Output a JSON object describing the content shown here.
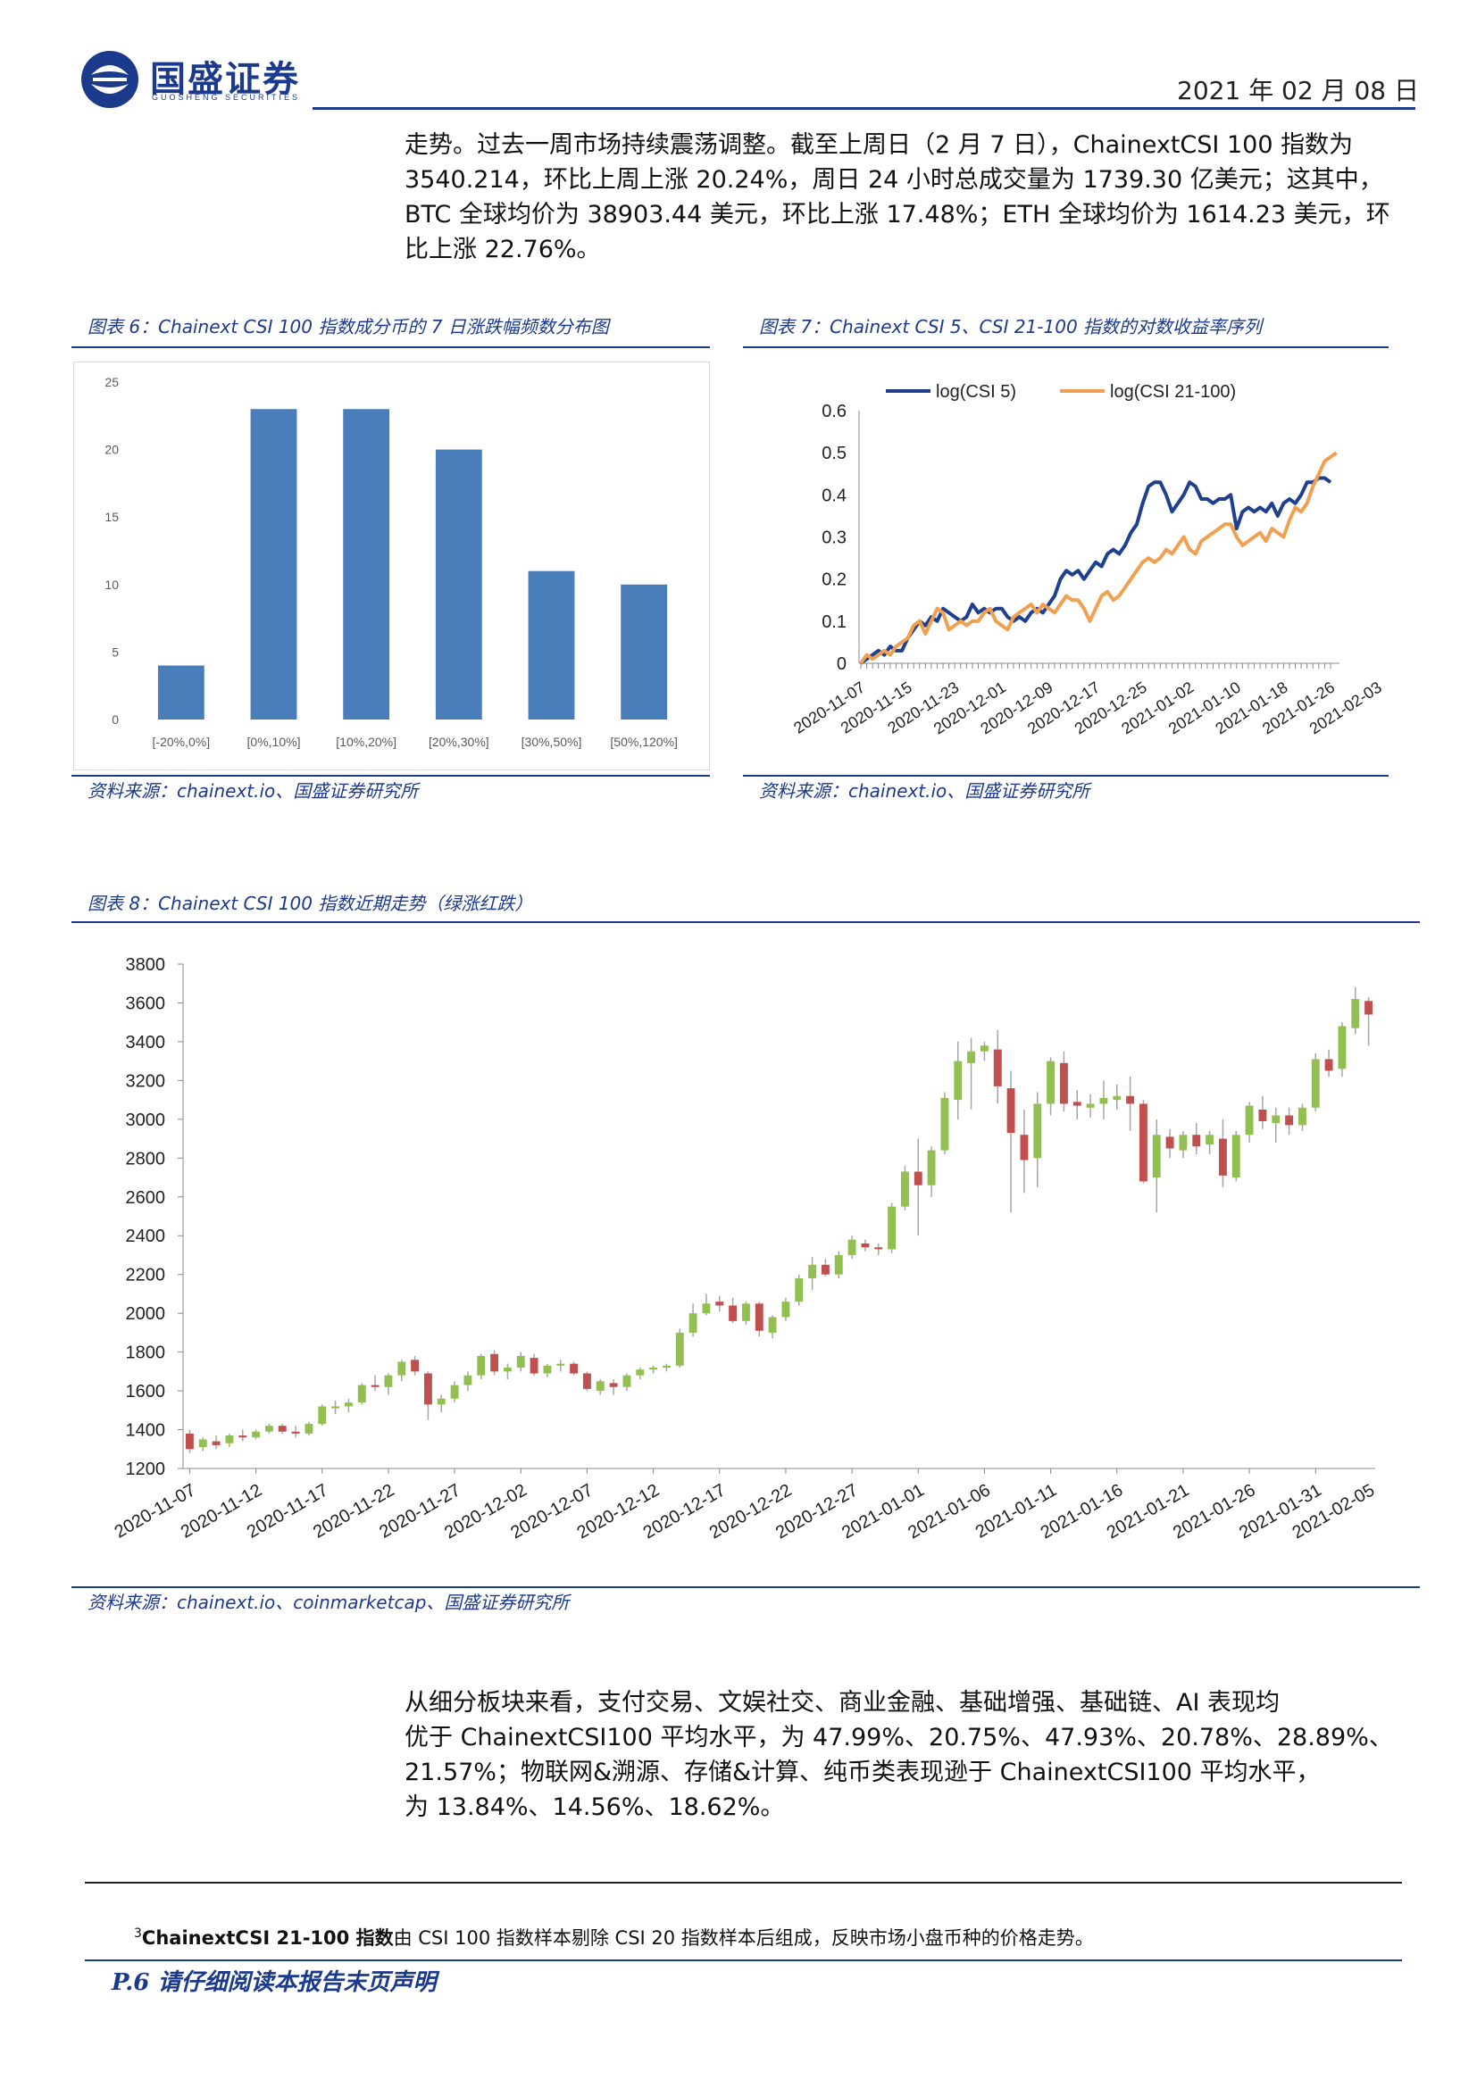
{
  "header": {
    "logo_text": "国盛证券",
    "logo_sub": "GUOSHENG SECURITIES",
    "date": "2021 年 02 月 08 日"
  },
  "intro_lines": [
    "走势。过去一周市场持续震荡调整。截至上周日（2 月 7 日），ChainextCSI 100 指数为",
    "3540.214，环比上周上涨 20.24%，周日 24 小时总成交量为 1739.30 亿美元；这其中，",
    "BTC 全球均价为 38903.44 美元，环比上涨 17.48%；ETH 全球均价为 1614.23 美元，环",
    "比上涨 22.76%。"
  ],
  "fig6": {
    "title": "图表 6：Chainext CSI 100 指数成分币的 7 日涨跌幅频数分布图",
    "source": "资料来源：chainext.io、国盛证券研究所"
  },
  "fig7": {
    "title": "图表 7：Chainext CSI 5、CSI 21-100 指数的对数收益率序列",
    "source": "资料来源：chainext.io、国盛证券研究所"
  },
  "fig8": {
    "title": "图表 8：Chainext CSI 100 指数近期走势（绿涨红跌）",
    "source": "资料来源：chainext.io、coinmarketcap、国盛证券研究所"
  },
  "body_lines": [
    "从细分板块来看，支付交易、文娱社交、商业金融、基础增强、基础链、AI 表现均",
    "优于 ChainextCSI100 平均水平，为 47.99%、20.75%、47.93%、20.78%、28.89%、",
    "21.57%；物联网&溯源、存储&计算、纯币类表现逊于 ChainextCSI100 平均水平，",
    "为 13.84%、14.56%、18.62%。"
  ],
  "footnote": {
    "mark": "3",
    "term": "ChainextCSI 21-100 指数",
    "text": "由 CSI 100 指数样本剔除 CSI 20 指数样本后组成，反映市场小盘币种的价格走势。"
  },
  "footer": {
    "text": "P.6 请仔细阅读本报告末页声明"
  },
  "colors": {
    "brand": "#1b3a8c",
    "bar": "#4a7ebb",
    "line1": "#1f3f8f",
    "line2": "#f0a050",
    "up": "#92c050",
    "down": "#c0504d"
  },
  "chart_data": [
    {
      "id": "fig6",
      "type": "bar",
      "categories": [
        "[-20%,0%]",
        "[0%,10%]",
        "[10%,20%]",
        "[20%,30%]",
        "[30%,50%]",
        "[50%,120%]"
      ],
      "values": [
        4,
        23,
        23,
        20,
        11,
        10
      ],
      "ylim": [
        0,
        25
      ],
      "yticks": [
        0,
        5,
        10,
        15,
        20,
        25
      ],
      "grid": false
    },
    {
      "id": "fig7",
      "type": "line",
      "x_tick_labels": [
        "2020-11-07",
        "2020-11-15",
        "2020-11-23",
        "2020-12-01",
        "2020-12-09",
        "2020-12-17",
        "2020-12-25",
        "2021-01-02",
        "2021-01-10",
        "2021-01-18",
        "2021-01-26",
        "2021-02-03"
      ],
      "ylim": [
        0,
        0.6
      ],
      "yticks": [
        "0",
        "0.1",
        "0.2",
        "0.3",
        "0.4",
        "0.5",
        "0.6"
      ],
      "legend": "top",
      "series": [
        {
          "name": "log(CSI 5)",
          "color": "#1f3f8f",
          "values": [
            0.0,
            0.01,
            0.02,
            0.03,
            0.02,
            0.04,
            0.03,
            0.03,
            0.06,
            0.08,
            0.1,
            0.09,
            0.11,
            0.1,
            0.13,
            0.12,
            0.11,
            0.1,
            0.11,
            0.14,
            0.12,
            0.13,
            0.12,
            0.13,
            0.13,
            0.11,
            0.1,
            0.11,
            0.1,
            0.12,
            0.13,
            0.12,
            0.14,
            0.16,
            0.2,
            0.22,
            0.21,
            0.22,
            0.2,
            0.22,
            0.24,
            0.23,
            0.26,
            0.27,
            0.26,
            0.28,
            0.31,
            0.33,
            0.38,
            0.42,
            0.43,
            0.43,
            0.4,
            0.36,
            0.38,
            0.4,
            0.43,
            0.42,
            0.39,
            0.39,
            0.38,
            0.39,
            0.39,
            0.4,
            0.32,
            0.36,
            0.37,
            0.36,
            0.37,
            0.36,
            0.38,
            0.35,
            0.38,
            0.39,
            0.38,
            0.4,
            0.43,
            0.43,
            0.44,
            0.44,
            0.43
          ]
        },
        {
          "name": "log(CSI 21-100)",
          "color": "#f0a050",
          "values": [
            0.0,
            0.02,
            0.01,
            0.02,
            0.03,
            0.02,
            0.04,
            0.05,
            0.06,
            0.09,
            0.1,
            0.07,
            0.1,
            0.13,
            0.12,
            0.08,
            0.09,
            0.1,
            0.09,
            0.1,
            0.1,
            0.12,
            0.13,
            0.1,
            0.09,
            0.08,
            0.11,
            0.12,
            0.13,
            0.14,
            0.12,
            0.14,
            0.13,
            0.12,
            0.14,
            0.16,
            0.15,
            0.15,
            0.13,
            0.1,
            0.13,
            0.16,
            0.17,
            0.15,
            0.16,
            0.18,
            0.2,
            0.22,
            0.24,
            0.25,
            0.24,
            0.25,
            0.27,
            0.26,
            0.28,
            0.3,
            0.27,
            0.26,
            0.29,
            0.3,
            0.31,
            0.32,
            0.33,
            0.33,
            0.3,
            0.28,
            0.29,
            0.3,
            0.31,
            0.29,
            0.32,
            0.31,
            0.3,
            0.34,
            0.37,
            0.36,
            0.38,
            0.42,
            0.45,
            0.48,
            0.49,
            0.5
          ]
        }
      ]
    },
    {
      "id": "fig8",
      "type": "candlestick",
      "x_tick_labels": [
        "2020-11-07",
        "2020-11-12",
        "2020-11-17",
        "2020-11-22",
        "2020-11-27",
        "2020-12-02",
        "2020-12-07",
        "2020-12-12",
        "2020-12-17",
        "2020-12-22",
        "2020-12-27",
        "2021-01-01",
        "2021-01-06",
        "2021-01-11",
        "2021-01-16",
        "2021-01-21",
        "2021-01-26",
        "2021-01-31",
        "2021-02-05"
      ],
      "ylim": [
        1200,
        3800
      ],
      "yticks": [
        1200,
        1400,
        1600,
        1800,
        2000,
        2200,
        2400,
        2600,
        2800,
        3000,
        3200,
        3400,
        3600,
        3800
      ],
      "ohlc": [
        [
          1380,
          1400,
          1280,
          1300
        ],
        [
          1310,
          1360,
          1290,
          1350
        ],
        [
          1340,
          1370,
          1300,
          1320
        ],
        [
          1330,
          1380,
          1310,
          1370
        ],
        [
          1370,
          1400,
          1340,
          1360
        ],
        [
          1360,
          1400,
          1350,
          1390
        ],
        [
          1390,
          1430,
          1380,
          1420
        ],
        [
          1420,
          1430,
          1380,
          1390
        ],
        [
          1390,
          1420,
          1360,
          1380
        ],
        [
          1380,
          1440,
          1370,
          1430
        ],
        [
          1430,
          1530,
          1420,
          1520
        ],
        [
          1510,
          1550,
          1480,
          1520
        ],
        [
          1520,
          1560,
          1490,
          1540
        ],
        [
          1540,
          1640,
          1530,
          1630
        ],
        [
          1630,
          1680,
          1600,
          1620
        ],
        [
          1620,
          1690,
          1580,
          1680
        ],
        [
          1680,
          1760,
          1650,
          1750
        ],
        [
          1760,
          1780,
          1680,
          1700
        ],
        [
          1690,
          1700,
          1450,
          1530
        ],
        [
          1530,
          1580,
          1490,
          1560
        ],
        [
          1560,
          1650,
          1540,
          1630
        ],
        [
          1630,
          1700,
          1600,
          1680
        ],
        [
          1680,
          1790,
          1660,
          1780
        ],
        [
          1790,
          1810,
          1680,
          1700
        ],
        [
          1700,
          1740,
          1660,
          1720
        ],
        [
          1720,
          1800,
          1700,
          1780
        ],
        [
          1770,
          1790,
          1680,
          1690
        ],
        [
          1690,
          1740,
          1670,
          1730
        ],
        [
          1730,
          1760,
          1700,
          1740
        ],
        [
          1740,
          1750,
          1680,
          1690
        ],
        [
          1690,
          1700,
          1600,
          1610
        ],
        [
          1600,
          1660,
          1580,
          1650
        ],
        [
          1640,
          1660,
          1580,
          1620
        ],
        [
          1620,
          1690,
          1600,
          1680
        ],
        [
          1680,
          1720,
          1660,
          1710
        ],
        [
          1710,
          1730,
          1690,
          1720
        ],
        [
          1720,
          1740,
          1700,
          1730
        ],
        [
          1730,
          1920,
          1720,
          1900
        ],
        [
          1900,
          2050,
          1880,
          2000
        ],
        [
          2000,
          2100,
          1990,
          2050
        ],
        [
          2060,
          2090,
          2010,
          2040
        ],
        [
          2040,
          2080,
          1950,
          1960
        ],
        [
          1960,
          2060,
          1940,
          2050
        ],
        [
          2050,
          2060,
          1880,
          1910
        ],
        [
          1900,
          1990,
          1870,
          1980
        ],
        [
          1980,
          2080,
          1960,
          2060
        ],
        [
          2060,
          2200,
          2040,
          2180
        ],
        [
          2180,
          2290,
          2120,
          2250
        ],
        [
          2250,
          2280,
          2190,
          2200
        ],
        [
          2200,
          2320,
          2180,
          2300
        ],
        [
          2300,
          2400,
          2280,
          2380
        ],
        [
          2360,
          2380,
          2320,
          2340
        ],
        [
          2340,
          2360,
          2300,
          2330
        ],
        [
          2330,
          2570,
          2310,
          2550
        ],
        [
          2550,
          2760,
          2530,
          2730
        ],
        [
          2730,
          2900,
          2400,
          2660
        ],
        [
          2660,
          2860,
          2600,
          2840
        ],
        [
          2840,
          3140,
          2820,
          3110
        ],
        [
          3100,
          3400,
          3000,
          3300
        ],
        [
          3290,
          3420,
          3050,
          3350
        ],
        [
          3350,
          3400,
          3300,
          3380
        ],
        [
          3360,
          3460,
          3080,
          3170
        ],
        [
          3160,
          3250,
          2520,
          2930
        ],
        [
          2920,
          3050,
          2620,
          2790
        ],
        [
          2800,
          3140,
          2650,
          3080
        ],
        [
          3080,
          3320,
          3020,
          3300
        ],
        [
          3290,
          3350,
          3040,
          3080
        ],
        [
          3090,
          3150,
          3000,
          3070
        ],
        [
          3060,
          3130,
          3010,
          3080
        ],
        [
          3080,
          3200,
          3000,
          3110
        ],
        [
          3100,
          3180,
          3050,
          3120
        ],
        [
          3120,
          3220,
          2940,
          3080
        ],
        [
          3080,
          3100,
          2670,
          2680
        ],
        [
          2700,
          3000,
          2520,
          2920
        ],
        [
          2910,
          2950,
          2800,
          2850
        ],
        [
          2840,
          2940,
          2800,
          2920
        ],
        [
          2920,
          2980,
          2820,
          2860
        ],
        [
          2870,
          2940,
          2820,
          2920
        ],
        [
          2900,
          3000,
          2650,
          2710
        ],
        [
          2700,
          2940,
          2680,
          2920
        ],
        [
          2920,
          3090,
          2880,
          3070
        ],
        [
          3050,
          3120,
          2950,
          2990
        ],
        [
          2980,
          3060,
          2880,
          3020
        ],
        [
          3020,
          3060,
          2920,
          2970
        ],
        [
          2970,
          3080,
          2940,
          3060
        ],
        [
          3060,
          3340,
          3040,
          3310
        ],
        [
          3310,
          3360,
          3220,
          3250
        ],
        [
          3260,
          3500,
          3220,
          3480
        ],
        [
          3470,
          3680,
          3440,
          3620
        ],
        [
          3610,
          3630,
          3380,
          3540
        ]
      ],
      "grid": false
    }
  ]
}
